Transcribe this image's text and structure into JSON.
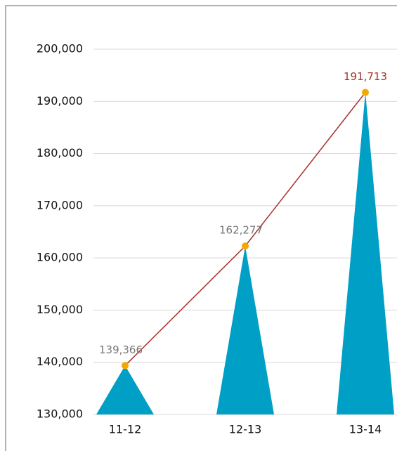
{
  "chart_data": {
    "type": "triangle-line",
    "categories": [
      "11-12",
      "12-13",
      "13-14"
    ],
    "values": [
      139366,
      162277,
      191713
    ],
    "value_labels": [
      "139,366",
      "162,277",
      "191,713"
    ],
    "color": "#00a0c6",
    "line_color": "#a5322a",
    "marker_color": "#f5a800",
    "ylim": [
      130000,
      200000
    ],
    "yticks": [
      {
        "value": 130000,
        "label": "130,000"
      },
      {
        "value": 140000,
        "label": "140,000"
      },
      {
        "value": 150000,
        "label": "150,000"
      },
      {
        "value": 160000,
        "label": "160,000"
      },
      {
        "value": 170000,
        "label": "170,000"
      },
      {
        "value": 180000,
        "label": "180,000"
      },
      {
        "value": 190000,
        "label": "190,000"
      },
      {
        "value": 200000,
        "label": "200,000"
      }
    ],
    "grid": true
  }
}
